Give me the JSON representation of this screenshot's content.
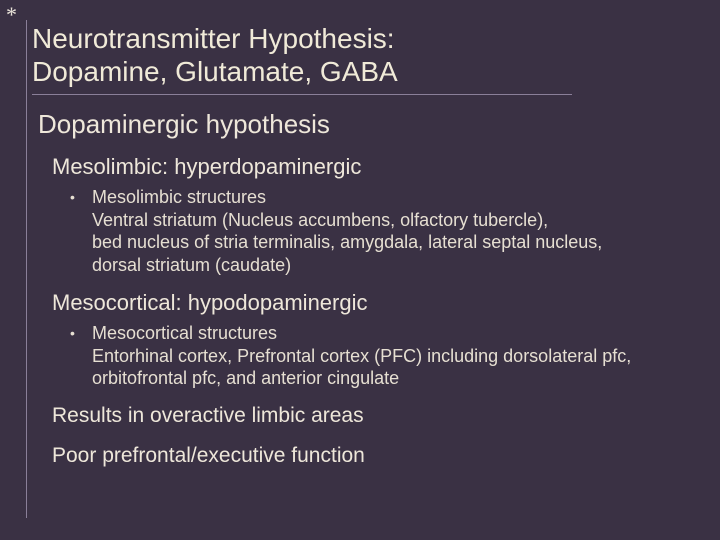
{
  "colors": {
    "background": "#3a3144",
    "text": "#e8e2d8",
    "rule": "#8a7f99",
    "heading": "#f0ead8"
  },
  "typography": {
    "title_fontsize_pt": 21,
    "h2_fontsize_pt": 20,
    "h3_fontsize_pt": 17,
    "body_fontsize_pt": 14,
    "result_fontsize_pt": 16,
    "font_family": "Arial"
  },
  "asterisk": "*",
  "title_line1": "Neurotransmitter Hypothesis:",
  "title_line2": "Dopamine, Glutamate, GABA",
  "section": "Dopaminergic hypothesis",
  "sub1": {
    "heading": "Mesolimbic:  hyperdopaminergic",
    "bullet_mark": "•",
    "body_l1": "Mesolimbic structures",
    "body_l2": "Ventral striatum (Nucleus accumbens, olfactory tubercle),",
    "body_l3": "bed nucleus of stria terminalis, amygdala, lateral septal nucleus,",
    "body_l4": "dorsal striatum  (caudate)"
  },
  "sub2": {
    "heading": "Mesocortical: hypodopaminergic",
    "bullet_mark": "•",
    "body_l1": "Mesocortical structures",
    "body_l2": "Entorhinal cortex, Prefrontal cortex (PFC) including dorsolateral pfc,",
    "body_l3": "orbitofrontal pfc, and anterior cingulate"
  },
  "result1": "Results in overactive limbic areas",
  "result2": "Poor prefrontal/executive function"
}
